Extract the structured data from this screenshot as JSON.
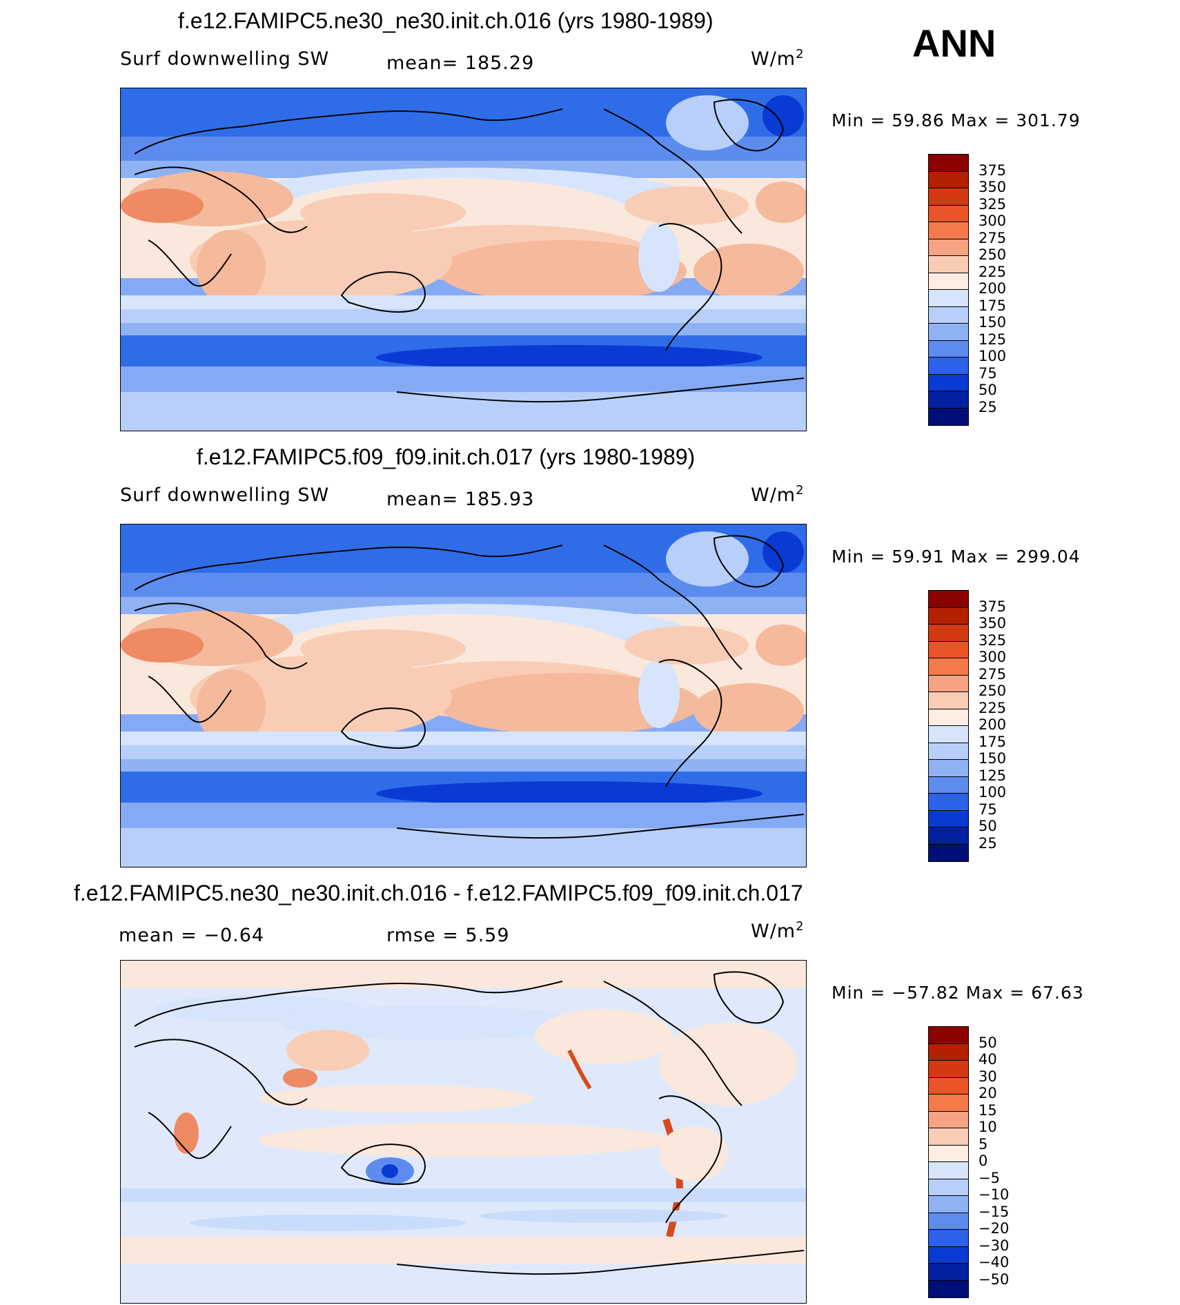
{
  "season": "ANN",
  "colors": {
    "ocean_cold": "#2f6de8",
    "ocean_mid": "#85aaf5",
    "light_blue": "#c9dcfb",
    "pale": "#fbe8dc",
    "salmon": "#f5b99b",
    "orange": "#ef8a63",
    "red": "#d9491e",
    "diff_bg": "#dfe9fb"
  },
  "chart_data": [
    {
      "type": "heatmap",
      "title": "f.e12.FAMIPC5.ne30_ne30.init.ch.016 (yrs 1980-1989)",
      "variable": "Surf downwelling SW",
      "mean_text": "mean=  185.29",
      "units": "W/m",
      "units_sup": "2",
      "minmax_text": "Min  =    59.86  Max  =  301.79",
      "stats": {
        "mean": 185.29,
        "min": 59.86,
        "max": 301.79
      },
      "colorbar_levels": [
        "375",
        "350",
        "325",
        "300",
        "275",
        "250",
        "225",
        "200",
        "175",
        "150",
        "125",
        "100",
        "75",
        "50",
        "25"
      ],
      "colorbar_colors": [
        "#8b0000",
        "#b52000",
        "#d43a12",
        "#ea5528",
        "#f47a4c",
        "#f6a383",
        "#f9cdb5",
        "#fceee3",
        "#d6e5fb",
        "#b8cff9",
        "#8eb2f4",
        "#5d8cef",
        "#2c62e8",
        "#0a3ad4",
        "#02209f",
        "#000f78"
      ]
    },
    {
      "type": "heatmap",
      "title": "f.e12.FAMIPC5.f09_f09.init.ch.017 (yrs 1980-1989)",
      "variable": "Surf downwelling SW",
      "mean_text": "mean=  185.93",
      "units": "W/m",
      "units_sup": "2",
      "minmax_text": "Min  =    59.91  Max  =  299.04",
      "stats": {
        "mean": 185.93,
        "min": 59.91,
        "max": 299.04
      },
      "colorbar_levels": [
        "375",
        "350",
        "325",
        "300",
        "275",
        "250",
        "225",
        "200",
        "175",
        "150",
        "125",
        "100",
        "75",
        "50",
        "25"
      ],
      "colorbar_colors": [
        "#8b0000",
        "#b52000",
        "#d43a12",
        "#ea5528",
        "#f47a4c",
        "#f6a383",
        "#f9cdb5",
        "#fceee3",
        "#d6e5fb",
        "#b8cff9",
        "#8eb2f4",
        "#5d8cef",
        "#2c62e8",
        "#0a3ad4",
        "#02209f",
        "#000f78"
      ]
    },
    {
      "type": "heatmap",
      "title": "f.e12.FAMIPC5.ne30_ne30.init.ch.016 - f.e12.FAMIPC5.f09_f09.init.ch.017",
      "variable": "",
      "mean_text": "mean  =    −0.64",
      "rmse_text": "rmse  =     5.59",
      "units": "W/m",
      "units_sup": "2",
      "minmax_text": "Min  = −57.82  Max  =    67.63",
      "stats": {
        "mean": -0.64,
        "rmse": 5.59,
        "min": -57.82,
        "max": 67.63
      },
      "colorbar_levels": [
        "50",
        "40",
        "30",
        "20",
        "15",
        "10",
        "5",
        "0",
        "−5",
        "−10",
        "−15",
        "−20",
        "−30",
        "−40",
        "−50"
      ],
      "colorbar_colors": [
        "#8b0000",
        "#b52000",
        "#d43a12",
        "#ea5528",
        "#f47a4c",
        "#f6a383",
        "#f9cdb5",
        "#fceee3",
        "#d6e5fb",
        "#b8cff9",
        "#8eb2f4",
        "#5d8cef",
        "#2c62e8",
        "#0a3ad4",
        "#02209f",
        "#000f78"
      ]
    }
  ]
}
